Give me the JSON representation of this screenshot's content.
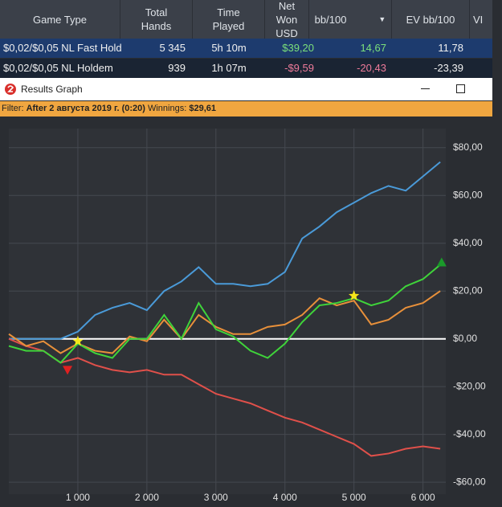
{
  "table": {
    "header": [
      "Game Type",
      "Total Hands",
      "Time Played",
      "Net Won USD",
      "bb/100",
      "EV bb/100",
      "VI"
    ],
    "rows": [
      [
        "$0,02/$0,05 NL Fast Hold",
        "5 345",
        "5h 10m",
        "$39,20",
        "14,67",
        "11,78"
      ],
      [
        "$0,02/$0,05 NL Holdem",
        "939",
        "1h 07m",
        "-$9,59",
        "-20,43",
        "-23,39"
      ]
    ]
  },
  "window": {
    "title": "Results Graph"
  },
  "filter": {
    "label": "Filter:",
    "value": "After 2 августа 2019 г. (0:20)",
    "winnings_label": "Winnings:",
    "winnings": "$29,61"
  },
  "chart_data": {
    "type": "line",
    "grid": true,
    "x": [
      0,
      250,
      500,
      750,
      1000,
      1250,
      1500,
      1750,
      2000,
      2250,
      2500,
      2750,
      3000,
      3250,
      3500,
      3750,
      4000,
      4250,
      4500,
      4750,
      5000,
      5250,
      5500,
      5750,
      6000,
      6250
    ],
    "xlim": [
      0,
      6330
    ],
    "xticks": [
      {
        "value": 1000,
        "label": "1 000"
      },
      {
        "value": 2000,
        "label": "2 000"
      },
      {
        "value": 3000,
        "label": "3 000"
      },
      {
        "value": 4000,
        "label": "4 000"
      },
      {
        "value": 5000,
        "label": "5 000"
      },
      {
        "value": 6000,
        "label": "6 000"
      }
    ],
    "ylim": [
      -65,
      88
    ],
    "yticks": [
      {
        "value": 80,
        "label": "$80,00"
      },
      {
        "value": 60,
        "label": "$60,00"
      },
      {
        "value": 40,
        "label": "$40,00"
      },
      {
        "value": 20,
        "label": "$20,00"
      },
      {
        "value": 0,
        "label": "$0,00"
      },
      {
        "value": -20,
        "label": "-$20,00"
      },
      {
        "value": -40,
        "label": "-$40,00"
      },
      {
        "value": -60,
        "label": "-$60,00"
      }
    ],
    "series": [
      {
        "color": "#4a9ad8",
        "values": [
          0,
          0,
          0,
          0,
          3,
          10,
          13,
          15,
          12,
          20,
          24,
          30,
          23,
          23,
          22,
          23,
          28,
          42,
          47,
          53,
          57,
          61,
          64,
          62,
          68,
          74
        ]
      },
      {
        "color": "#e0504a",
        "values": [
          0,
          -3,
          -5,
          -10,
          -8,
          -11,
          -13,
          -14,
          -13,
          -15,
          -15,
          -19,
          -23,
          -25,
          -27,
          -30,
          -33,
          -35,
          -38,
          -41,
          -44,
          -49,
          -48,
          -46,
          -45,
          -46
        ]
      },
      {
        "color": "#e8903a",
        "values": [
          2,
          -3,
          -1,
          -6,
          -2,
          -5,
          -6,
          1,
          -1,
          8,
          0,
          10,
          5,
          2,
          2,
          5,
          6,
          10,
          17,
          14,
          16,
          6,
          8,
          13,
          15,
          20
        ]
      },
      {
        "color": "#3fd43a",
        "values": [
          -3,
          -5,
          -5,
          -10,
          -2,
          -6,
          -8,
          0,
          0,
          10,
          0,
          15,
          4,
          1,
          -5,
          -8,
          -2,
          7,
          14,
          15,
          17,
          14,
          16,
          22,
          25,
          31
        ]
      }
    ],
    "markers": [
      {
        "shape": "star",
        "color": "#f5e61a",
        "x": 1000,
        "y": -1
      },
      {
        "shape": "down",
        "color": "#e02020",
        "x": 850,
        "y": -13
      },
      {
        "shape": "star",
        "color": "#f5e61a",
        "x": 5000,
        "y": 18
      },
      {
        "shape": "up",
        "color": "#1a9a2a",
        "x": 6270,
        "y": 32
      }
    ]
  }
}
